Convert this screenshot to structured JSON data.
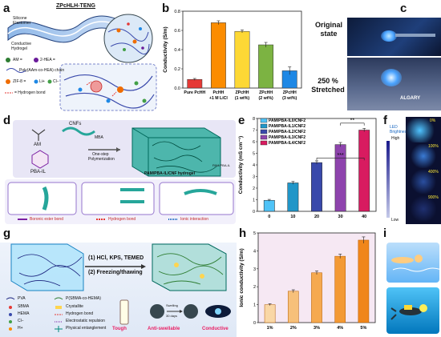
{
  "panel_labels": {
    "a": "a",
    "b": "b",
    "c": "c",
    "d": "d",
    "e": "e",
    "f": "f",
    "g": "g",
    "h": "h",
    "i": "i"
  },
  "panel_a": {
    "title": "ZPcHLH-TENG",
    "silicone_label": "Silicone Elastomer",
    "hydrogel_label": "Conductive Hydrogel",
    "legend": [
      {
        "symbol": "AM =",
        "color": "#2e7d32"
      },
      {
        "symbol": "2-HEA =",
        "color": "#6a1b9a"
      },
      {
        "symbol": "Poly(AAm-co-HEA) chain",
        "color": "#3949ab"
      },
      {
        "symbol": "ZIF-8 =",
        "color": "#ef6c00"
      },
      {
        "symbol": "Li+",
        "color": "#1e88e5"
      },
      {
        "symbol": "Cl−",
        "color": "#43a047"
      },
      {
        "symbol": "= Hydrogen bond",
        "color": "#e53935"
      }
    ]
  },
  "chart_b": {
    "type": "bar",
    "ylabel": "Conductivity (S/m)",
    "ylim": [
      0,
      0.8
    ],
    "yticks": [
      "0.0",
      "0.2",
      "0.4",
      "0.6",
      "0.8"
    ],
    "categories": [
      "Pure PcHH",
      "PcHH\n+1 M LiCl",
      "ZPcHH\n(1 wt%)",
      "ZPcHH\n(2 wt%)",
      "ZPcHH\n(3 wt%)"
    ],
    "cat_lines": [
      [
        "Pure PcHH",
        ""
      ],
      [
        "PcHH",
        "+1 M LiCl"
      ],
      [
        "ZPcHH",
        "(1 wt%)"
      ],
      [
        "ZPcHH",
        "(2 wt%)"
      ],
      [
        "ZPcHH",
        "(3 wt%)"
      ]
    ],
    "values": [
      0.09,
      0.68,
      0.59,
      0.45,
      0.18
    ],
    "errors": [
      0.01,
      0.02,
      0.015,
      0.025,
      0.04
    ],
    "colors": [
      "#e53935",
      "#fb8c00",
      "#fdd835",
      "#7cb342",
      "#1e88e5"
    ]
  },
  "panel_c": {
    "state1": "Original state",
    "state2": "250 % Stretched",
    "logo_text": "ALGARY"
  },
  "panel_d": {
    "am": "AM",
    "cnfs": "CNFs",
    "pbail": "PBA-IL",
    "step": "MBA\nOne-step\nPolymerization",
    "step_lines": [
      "MBA",
      "One-step",
      "Polymerization"
    ],
    "hydrogel": "PAM/PBA-IL/CNF hydrogel",
    "side": "PAM/PBA-IL",
    "legend_boronic": "Boronic ester bond",
    "legend_hbond": "Hydrogen bond",
    "legend_ionic": "Ionic interaction"
  },
  "chart_e": {
    "type": "bar",
    "xlabel": "",
    "ylabel": "Conductivity (mS cm⁻¹)",
    "ylim": [
      0,
      8
    ],
    "yticks": [
      "0",
      "1",
      "2",
      "3",
      "4",
      "5",
      "6",
      "7",
      "8"
    ],
    "categories": [
      "0",
      "10",
      "20",
      "30",
      "40"
    ],
    "values": [
      0.95,
      2.45,
      4.2,
      5.75,
      7.0
    ],
    "errors": [
      0.08,
      0.12,
      0.15,
      0.18,
      0.15
    ],
    "colors": [
      "#4fc3f7",
      "#2196c8",
      "#3949ab",
      "#8e44ad",
      "#d81b60"
    ],
    "legend": [
      "PAM/PBA-IL0/CNF2",
      "PAM/PBA-IL1/CNF2",
      "PAM/PBA-IL2/CNF2",
      "PAM/PBA-IL3/CNF2",
      "PAM/PBA-IL4/CNF2"
    ],
    "sig1": "***",
    "sig2": "**"
  },
  "panel_f": {
    "title": "LED Brightness",
    "high": "High",
    "low": "Low",
    "strains": [
      "0%",
      "100%",
      "400%",
      "900%"
    ]
  },
  "panel_g": {
    "step1": "(1) HCl, KPS, TEMED",
    "step2": "(2) Freezing/thawing",
    "legend_left": [
      "PVA",
      "SBMA",
      "HEMA",
      "Cl−",
      "H+"
    ],
    "legend_right": [
      "P(SBMA-co-HEMA)",
      "Crystallite",
      "Hydrogen bond",
      "Electrostatic repulsion",
      "Physical entanglement"
    ],
    "swelling": "Swelling\n30 days",
    "swelling_lines": [
      "Swelling",
      "30 days"
    ],
    "tough": "Tough",
    "anti": "Anti-swellable",
    "conductive": "Conductive"
  },
  "chart_h": {
    "type": "bar",
    "ylabel": "Ionic conductivity (S/m)",
    "ylim": [
      0,
      5
    ],
    "yticks": [
      "0",
      "1",
      "2",
      "3",
      "4",
      "5"
    ],
    "categories": [
      "1%",
      "2%",
      "3%",
      "4%",
      "5%"
    ],
    "values": [
      1.0,
      1.75,
      2.78,
      3.7,
      4.6
    ],
    "errors": [
      0.05,
      0.08,
      0.1,
      0.12,
      0.18
    ]
  }
}
